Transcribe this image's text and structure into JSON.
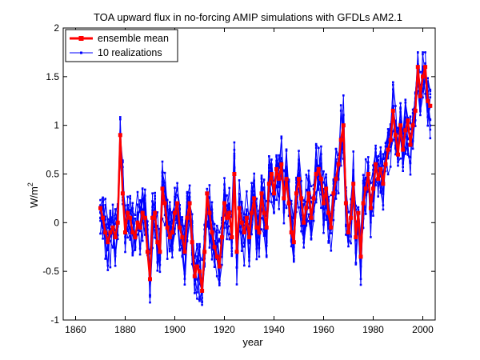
{
  "chart_data": {
    "type": "line",
    "title": "TOA upward flux in no-forcing AMIP simulations with GFDLs AM2.1",
    "xlabel": "year",
    "ylabel": "W/m",
    "ylabel_superscript": "2",
    "xlim": [
      1855,
      2005
    ],
    "ylim": [
      -1,
      2
    ],
    "x_ticks": [
      1860,
      1880,
      1900,
      1920,
      1940,
      1960,
      1980,
      2000
    ],
    "x_tick_labels": [
      "1860",
      "1880",
      "1900",
      "1920",
      "1940",
      "1960",
      "1980",
      "2000"
    ],
    "y_ticks": [
      -1,
      -0.5,
      0,
      0.5,
      1,
      1.5,
      2
    ],
    "y_tick_labels": [
      "-1",
      "-0.5",
      "0",
      "0.5",
      "1",
      "1.5",
      "2"
    ],
    "grid": false,
    "legend_position": "top-left",
    "series": [
      {
        "name": "ensemble mean",
        "color": "#ff0000",
        "marker": "square",
        "x": [
          1870,
          1871,
          1872,
          1873,
          1874,
          1875,
          1876,
          1877,
          1878,
          1879,
          1880,
          1881,
          1882,
          1883,
          1884,
          1885,
          1886,
          1887,
          1888,
          1889,
          1890,
          1891,
          1892,
          1893,
          1894,
          1895,
          1896,
          1897,
          1898,
          1899,
          1900,
          1901,
          1902,
          1903,
          1904,
          1905,
          1906,
          1907,
          1908,
          1909,
          1910,
          1911,
          1912,
          1913,
          1914,
          1915,
          1916,
          1917,
          1918,
          1919,
          1920,
          1921,
          1922,
          1923,
          1924,
          1925,
          1926,
          1927,
          1928,
          1929,
          1930,
          1931,
          1932,
          1933,
          1934,
          1935,
          1936,
          1937,
          1938,
          1939,
          1940,
          1941,
          1942,
          1943,
          1944,
          1945,
          1946,
          1947,
          1948,
          1949,
          1950,
          1951,
          1952,
          1953,
          1954,
          1955,
          1956,
          1957,
          1958,
          1959,
          1960,
          1961,
          1962,
          1963,
          1964,
          1965,
          1966,
          1967,
          1968,
          1969,
          1970,
          1971,
          1972,
          1973,
          1974,
          1975,
          1976,
          1977,
          1978,
          1979,
          1980,
          1981,
          1982,
          1983,
          1984,
          1985,
          1986,
          1987,
          1988,
          1989,
          1990,
          1991,
          1992,
          1993,
          1994,
          1995,
          1996,
          1997,
          1998,
          1999,
          2000,
          2001,
          2002,
          2003
        ],
        "y": [
          0.15,
          0.05,
          -0.1,
          -0.2,
          -0.1,
          -0.05,
          -0.15,
          0.0,
          0.9,
          0.3,
          -0.1,
          0.1,
          0.05,
          -0.1,
          -0.15,
          0.0,
          -0.05,
          0.1,
          0.05,
          -0.3,
          -0.58,
          0.05,
          0.1,
          -0.2,
          -0.3,
          0.35,
          0.2,
          -0.05,
          -0.15,
          -0.1,
          0.1,
          0.2,
          -0.05,
          -0.15,
          -0.3,
          0.05,
          0.2,
          -0.2,
          -0.55,
          -0.45,
          -0.5,
          -0.7,
          -0.3,
          0.3,
          0.1,
          -0.1,
          -0.25,
          -0.35,
          -0.45,
          -0.15,
          0.2,
          0.05,
          0.1,
          -0.15,
          0.5,
          -0.3,
          0.15,
          0.0,
          -0.1,
          0.05,
          -0.15,
          0.1,
          0.25,
          -0.05,
          -0.1,
          0.3,
          0.1,
          -0.05,
          0.4,
          0.5,
          0.3,
          0.55,
          0.45,
          0.6,
          0.25,
          0.45,
          0.2,
          -0.1,
          -0.2,
          0.3,
          0.45,
          0.25,
          0.0,
          0.15,
          0.3,
          0.05,
          0.25,
          0.5,
          0.55,
          0.45,
          0.2,
          0.35,
          0.1,
          -0.05,
          0.3,
          0.45,
          0.6,
          0.85,
          1.0,
          0.2,
          -0.1,
          0.05,
          0.4,
          -0.15,
          0.1,
          -0.35,
          0.2,
          0.35,
          0.5,
          0.15,
          0.35,
          0.6,
          0.45,
          0.55,
          0.4,
          0.6,
          0.75,
          0.85,
          1.15,
          0.9,
          0.7,
          1.0,
          0.75,
          0.95,
          1.05,
          0.8,
          1.0,
          1.15,
          1.6,
          1.3,
          1.5,
          1.6,
          1.25,
          1.2
        ]
      },
      {
        "name": "10 realizations",
        "color": "#0000ff",
        "marker": "point"
      }
    ]
  }
}
